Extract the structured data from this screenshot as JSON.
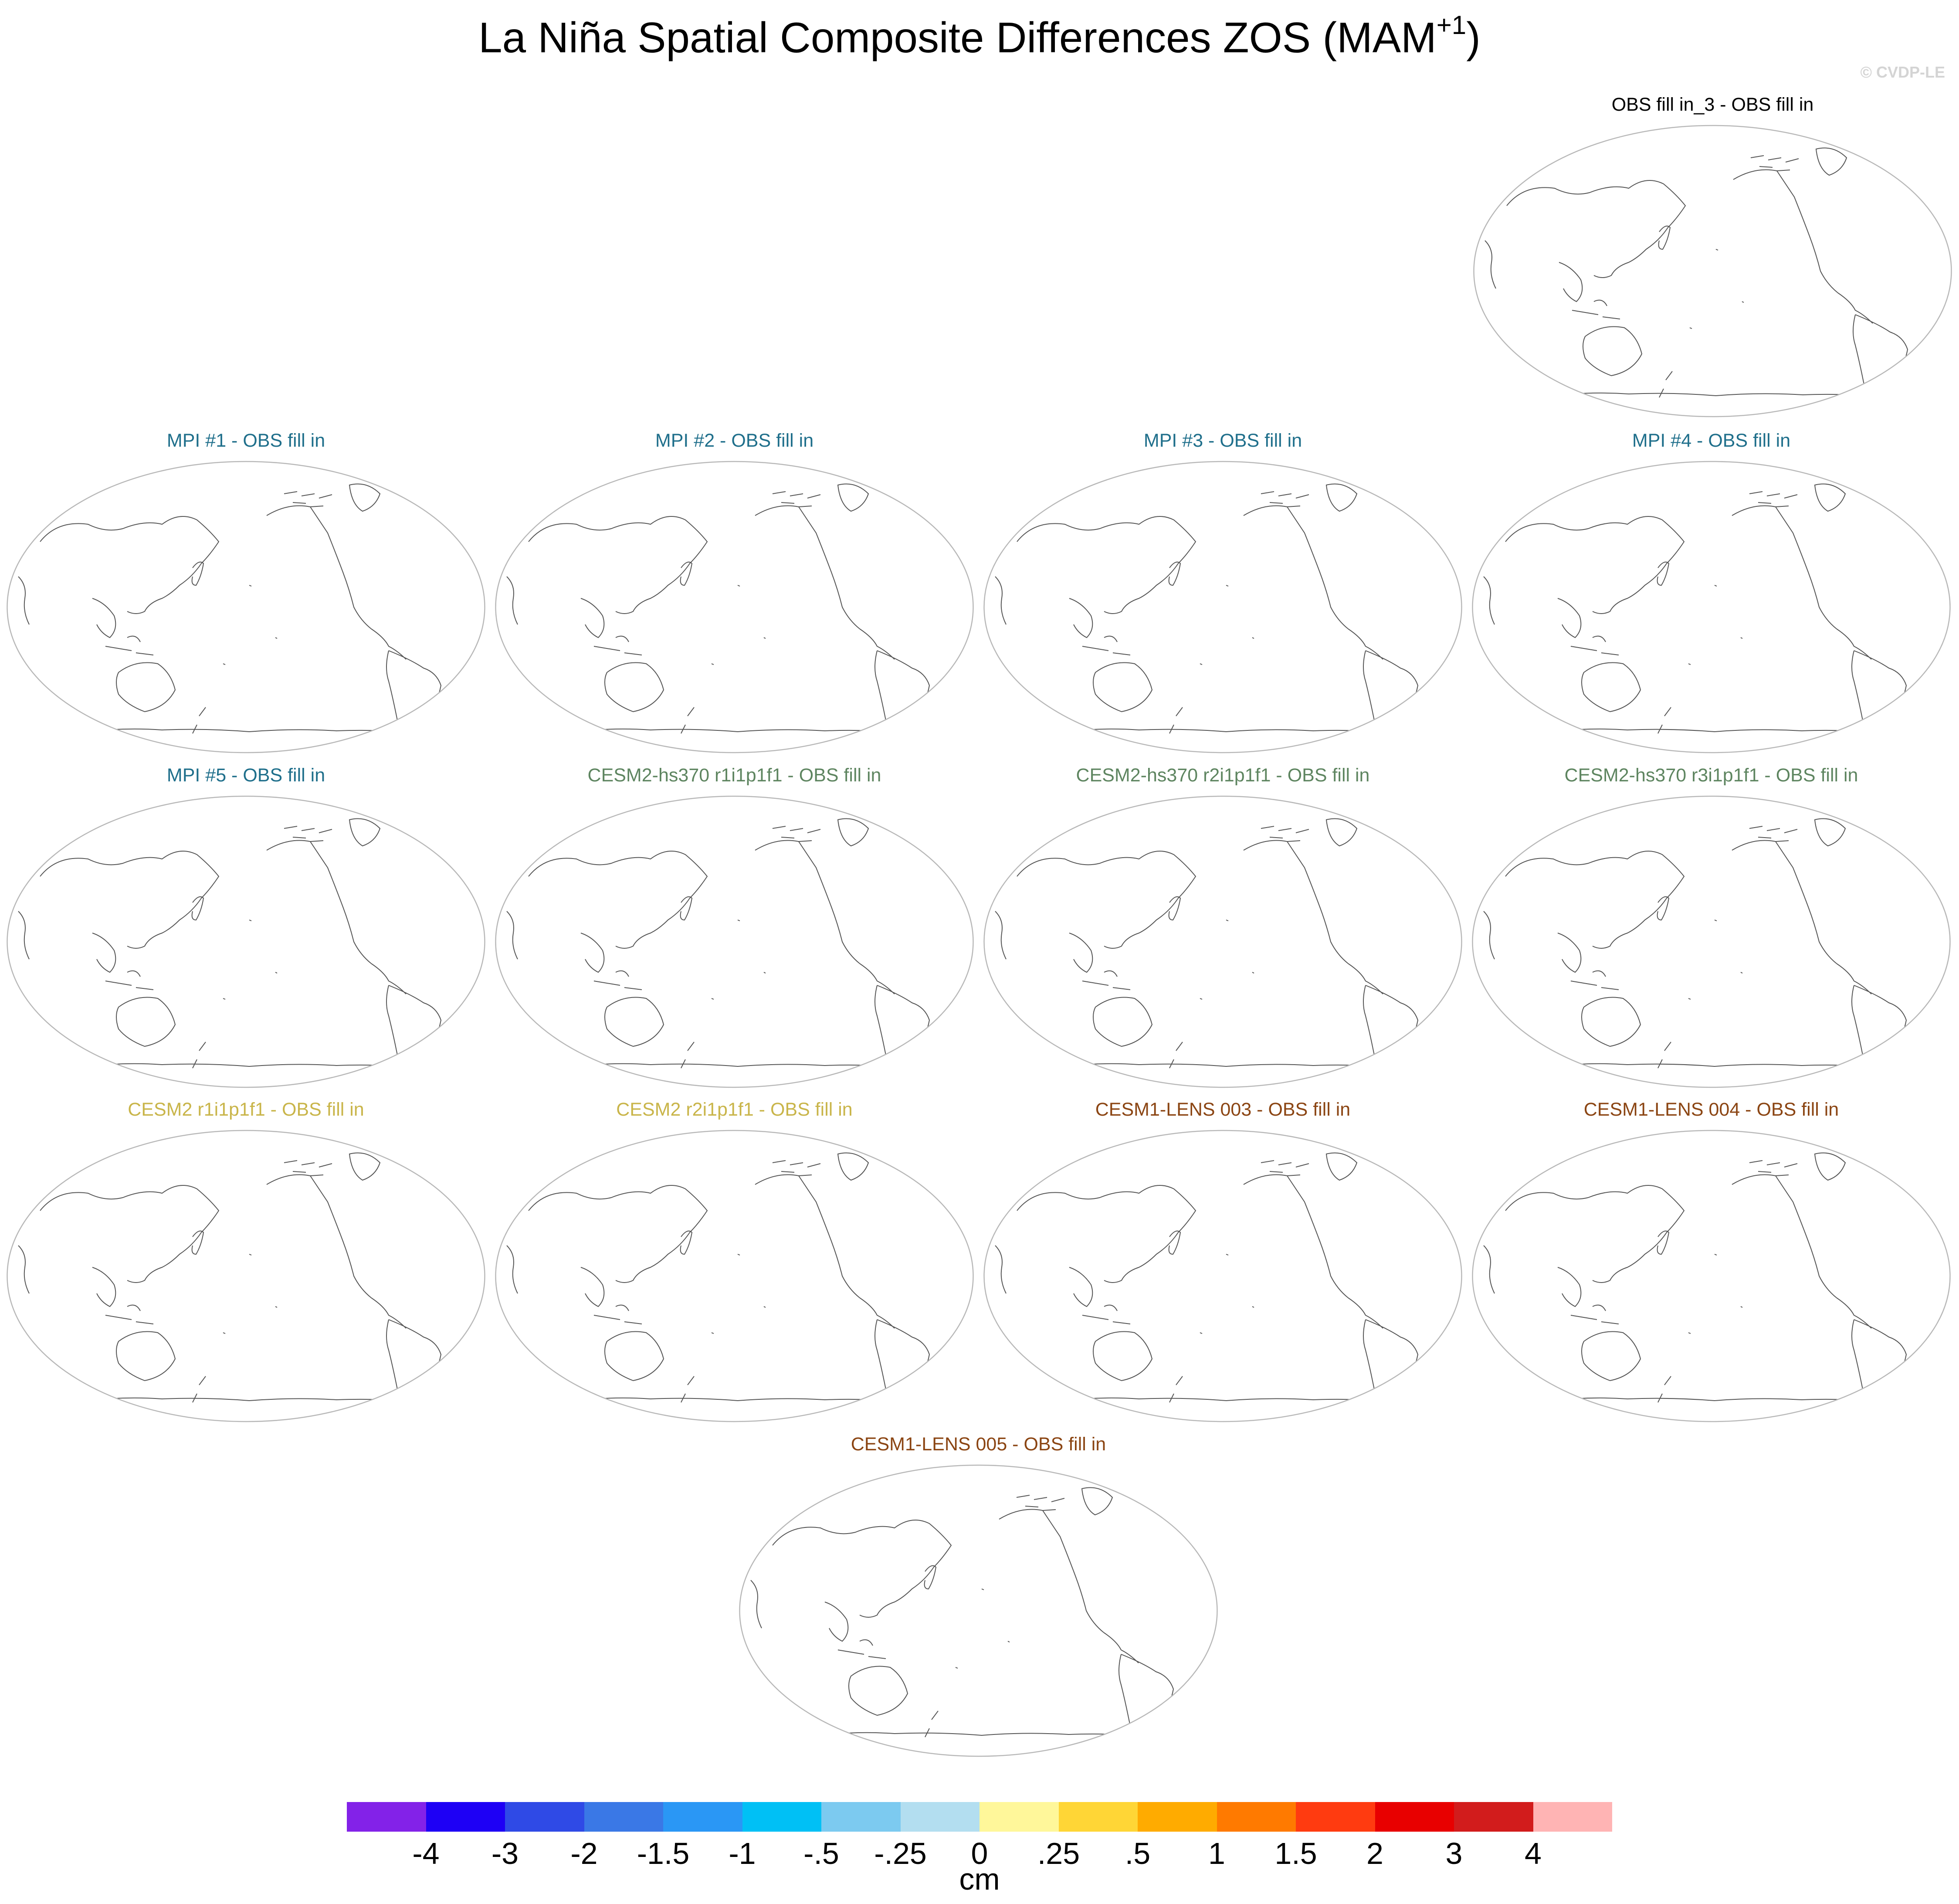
{
  "title": {
    "main": "La Niña Spatial Composite Differences ZOS (MAM",
    "sup": "+1",
    "close": ")"
  },
  "watermark": "© CVDP-LE",
  "panels": [
    {
      "label": "OBS fill in_3 - OBS fill in",
      "color": "#000000"
    },
    {
      "label": "MPI #1 - OBS fill in",
      "color": "#1f6f8b"
    },
    {
      "label": "MPI #2 - OBS fill in",
      "color": "#1f6f8b"
    },
    {
      "label": "MPI #3 - OBS fill in",
      "color": "#1f6f8b"
    },
    {
      "label": "MPI #4 - OBS fill in",
      "color": "#1f6f8b"
    },
    {
      "label": "MPI #5 - OBS fill in",
      "color": "#1f6f8b"
    },
    {
      "label": "CESM2-hs370 r1i1p1f1 - OBS fill in",
      "color": "#5e8560"
    },
    {
      "label": "CESM2-hs370 r2i1p1f1 - OBS fill in",
      "color": "#5e8560"
    },
    {
      "label": "CESM2-hs370 r3i1p1f1 - OBS fill in",
      "color": "#5e8560"
    },
    {
      "label": "CESM2 r1i1p1f1 - OBS fill in",
      "color": "#c9b54a"
    },
    {
      "label": "CESM2 r2i1p1f1 - OBS fill in",
      "color": "#c9b54a"
    },
    {
      "label": "CESM1-LENS 003 - OBS fill in",
      "color": "#8b4513"
    },
    {
      "label": "CESM1-LENS 004 - OBS fill in",
      "color": "#8b4513"
    },
    {
      "label": "CESM1-LENS 005 - OBS fill in",
      "color": "#8b4513"
    }
  ],
  "colorbar": {
    "colors": [
      "#8322e8",
      "#1e00f5",
      "#2f4ae6",
      "#3a78e6",
      "#2a97f5",
      "#00c0f5",
      "#7ccaf0",
      "#b3def0",
      "#fff79a",
      "#ffd636",
      "#ffab00",
      "#ff7a00",
      "#ff3b10",
      "#e80000",
      "#d21c1c",
      "#ffb4b4"
    ],
    "labels": [
      "-4",
      "-3",
      "-2",
      "-1.5",
      "-1",
      "-.5",
      "-.25",
      "0",
      ".25",
      ".5",
      "1",
      "1.5",
      "2",
      "3",
      "4"
    ],
    "unit": "cm"
  }
}
